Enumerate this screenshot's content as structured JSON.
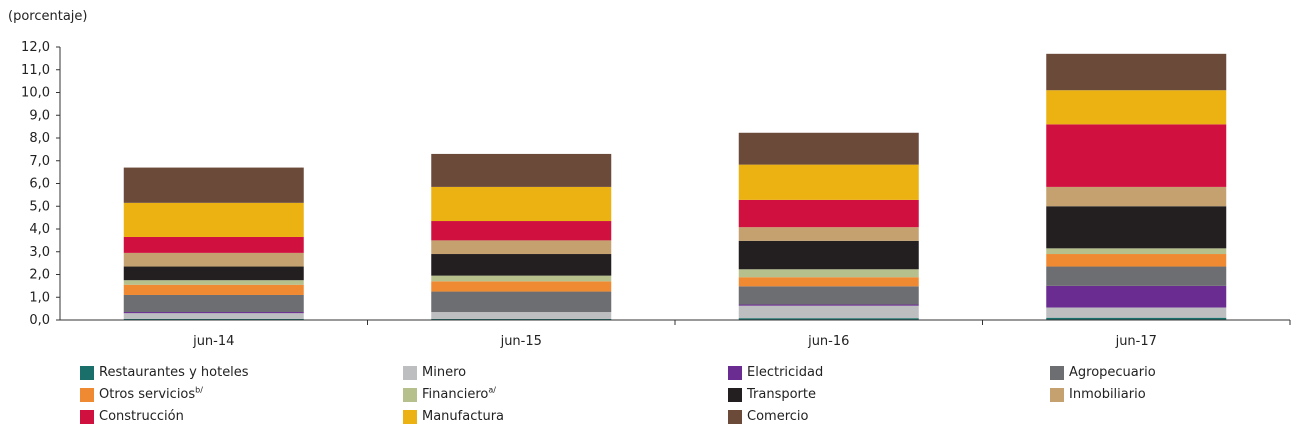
{
  "chart_data": {
    "type": "bar",
    "stacked": true,
    "ylabel": "(porcentaje)",
    "ylim": [
      0,
      12
    ],
    "yticks": [
      "0,0",
      "1,0",
      "2,0",
      "3,0",
      "4,0",
      "5,0",
      "6,0",
      "7,0",
      "8,0",
      "9,0",
      "10,0",
      "11,0",
      "12,0"
    ],
    "categories": [
      "jun-14",
      "jun-15",
      "jun-16",
      "jun-17"
    ],
    "series": [
      {
        "name": "Restaurantes y hoteles",
        "sup": "",
        "color": "#1a6f6b",
        "values": [
          0.05,
          0.05,
          0.08,
          0.1
        ]
      },
      {
        "name": "Minero",
        "sup": "",
        "color": "#bdbec0",
        "values": [
          0.25,
          0.3,
          0.55,
          0.45
        ]
      },
      {
        "name": "Electricidad",
        "sup": "",
        "color": "#6a2c91",
        "values": [
          0.05,
          0.0,
          0.05,
          0.95
        ]
      },
      {
        "name": "Agropecuario",
        "sup": "",
        "color": "#6d6e71",
        "values": [
          0.75,
          0.9,
          0.8,
          0.85
        ]
      },
      {
        "name": "Otros servicios",
        "sup": "b/",
        "color": "#f08a32",
        "values": [
          0.45,
          0.45,
          0.4,
          0.55
        ]
      },
      {
        "name": "Financiero",
        "sup": "a/",
        "color": "#b5c08c",
        "values": [
          0.2,
          0.25,
          0.35,
          0.25
        ]
      },
      {
        "name": "Transporte",
        "sup": "",
        "color": "#231f20",
        "values": [
          0.6,
          0.95,
          1.25,
          1.85
        ]
      },
      {
        "name": "Inmobiliario",
        "sup": "",
        "color": "#c4a16f",
        "values": [
          0.6,
          0.6,
          0.6,
          0.85
        ]
      },
      {
        "name": "Construcción",
        "sup": "",
        "color": "#d0103f",
        "values": [
          0.7,
          0.85,
          1.2,
          2.75
        ]
      },
      {
        "name": "Manufactura",
        "sup": "",
        "color": "#ebb212",
        "values": [
          1.5,
          1.5,
          1.55,
          1.5
        ]
      },
      {
        "name": "Comercio",
        "sup": "",
        "color": "#6b4a3a",
        "values": [
          1.55,
          1.45,
          1.4,
          1.6
        ]
      }
    ],
    "legend_position": "bottom",
    "grid": false
  }
}
